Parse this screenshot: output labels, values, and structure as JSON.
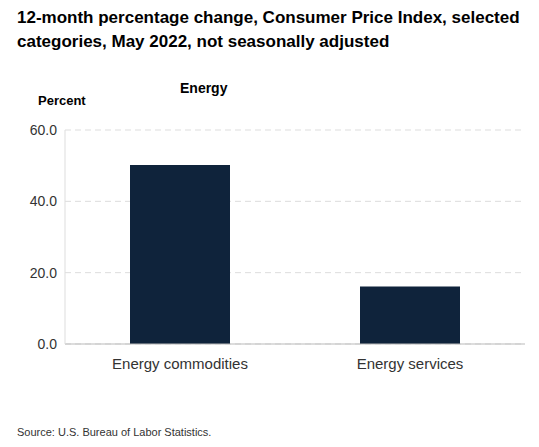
{
  "chart_data": {
    "type": "bar",
    "title": "12-month percentage change, Consumer Price Index, selected categories, May 2022, not seasonally adjusted",
    "subtitle": "Energy",
    "y_label": "Percent",
    "source": "Source: U.S. Bureau of Labor Statistics.",
    "categories": [
      "Energy commodities",
      "Energy services"
    ],
    "values": [
      50.2,
      16.1
    ],
    "color": "#0f233b",
    "ylim": [
      0,
      60
    ],
    "yticks": [
      {
        "value": 0,
        "label": "0.0"
      },
      {
        "value": 20,
        "label": "20.0"
      },
      {
        "value": 40,
        "label": "40.0"
      },
      {
        "value": 60,
        "label": "60.0"
      }
    ],
    "grid": true
  }
}
